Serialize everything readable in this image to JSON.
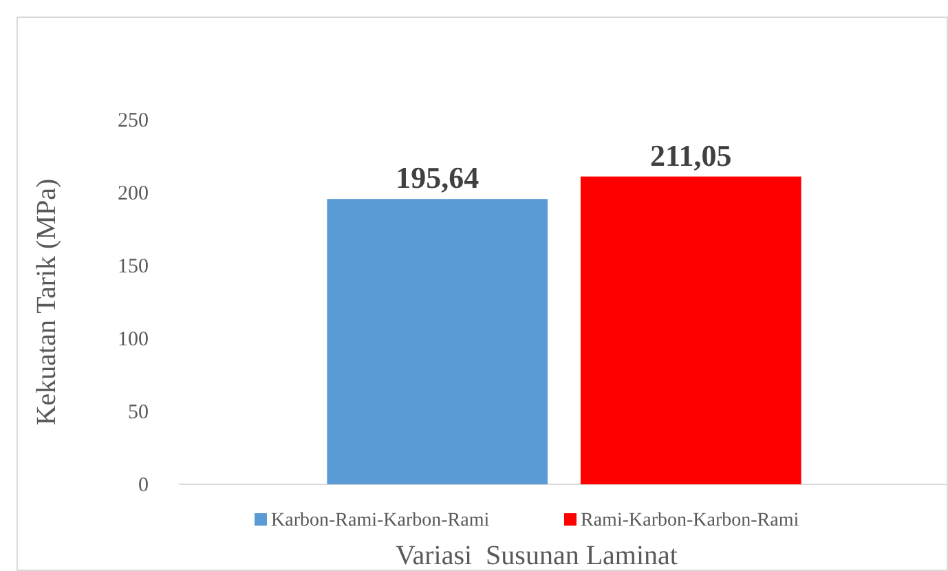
{
  "chart_data": {
    "type": "bar",
    "xlabel": "Variasi  Susunan Laminat",
    "ylabel": "Kekuatan Tarik  (MPa)",
    "categories": [
      null
    ],
    "series": [
      {
        "name": "Karbon-Rami-Karbon-Rami",
        "color": "#5b9bd5",
        "values": [
          195.64
        ],
        "value_labels": [
          "195,64"
        ]
      },
      {
        "name": "Rami-Karbon-Karbon-Rami",
        "color": "#ff0000",
        "values": [
          211.05
        ],
        "value_labels": [
          "211,05"
        ]
      }
    ],
    "ylim": [
      0,
      250
    ],
    "yticks": [
      0,
      50,
      100,
      150,
      200,
      250
    ],
    "legend": "bottom"
  }
}
